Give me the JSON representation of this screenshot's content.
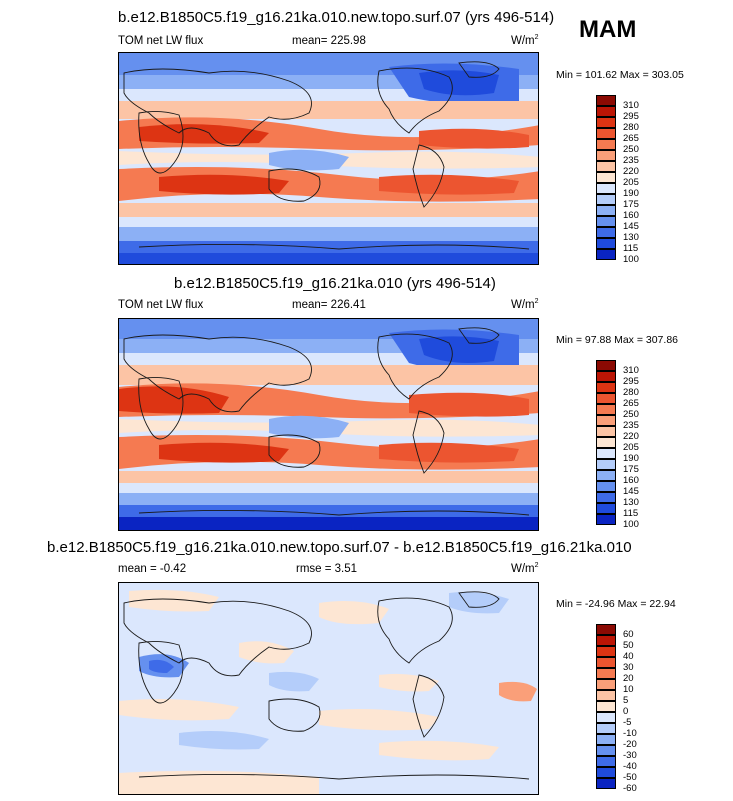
{
  "season": "MAM",
  "colors": {
    "abs": [
      "#08057a",
      "#0a24c2",
      "#1f4bdc",
      "#3e6be8",
      "#6590ef",
      "#8cb0f5",
      "#b4cdfa",
      "#dbe7fd",
      "#fde6d3",
      "#fcc4a5",
      "#fa9f79",
      "#f57a51",
      "#ec5530",
      "#dd3413",
      "#bb1505",
      "#8b0a03"
    ],
    "diff": [
      "#08057a",
      "#0a24c2",
      "#1f4bdc",
      "#3e6be8",
      "#6590ef",
      "#8cb0f5",
      "#b4cdfa",
      "#dbe7fd",
      "#fde6d3",
      "#fcc4a5",
      "#fa9f79",
      "#f57a51",
      "#ec5530",
      "#dd3413",
      "#bb1505",
      "#8b0a03"
    ],
    "land": "#1a1a1a"
  },
  "panels": [
    {
      "title": "b.e12.B1850C5.f19_g16.21ka.010.new.topo.surf.07 (yrs 496-514)",
      "left_label": "TOM net LW flux",
      "mean_label": "mean= 225.98",
      "units": "W/m",
      "units_sup": "2",
      "minmax": "Min = 101.62 Max = 303.05",
      "levels": [
        "310",
        "295",
        "280",
        "265",
        "250",
        "235",
        "220",
        "205",
        "190",
        "175",
        "160",
        "145",
        "130",
        "115",
        "100"
      ],
      "scale": "abs"
    },
    {
      "title": "b.e12.B1850C5.f19_g16.21ka.010 (yrs 496-514)",
      "left_label": "TOM net LW flux",
      "mean_label": "mean= 226.41",
      "units": "W/m",
      "units_sup": "2",
      "minmax": "Min = 97.88 Max = 307.86",
      "levels": [
        "310",
        "295",
        "280",
        "265",
        "250",
        "235",
        "220",
        "205",
        "190",
        "175",
        "160",
        "145",
        "130",
        "115",
        "100"
      ],
      "scale": "abs"
    },
    {
      "title": "b.e12.B1850C5.f19_g16.21ka.010.new.topo.surf.07 - b.e12.B1850C5.f19_g16.21ka.010",
      "left_label": "mean =  -0.42",
      "mean_label": "rmse =   3.51",
      "units": "W/m",
      "units_sup": "2",
      "minmax": "Min = -24.96 Max = 22.94",
      "levels": [
        "60",
        "50",
        "40",
        "30",
        "20",
        "10",
        "5",
        "0",
        "-5",
        "-10",
        "-20",
        "-30",
        "-40",
        "-50",
        "-60"
      ],
      "scale": "diff"
    }
  ]
}
